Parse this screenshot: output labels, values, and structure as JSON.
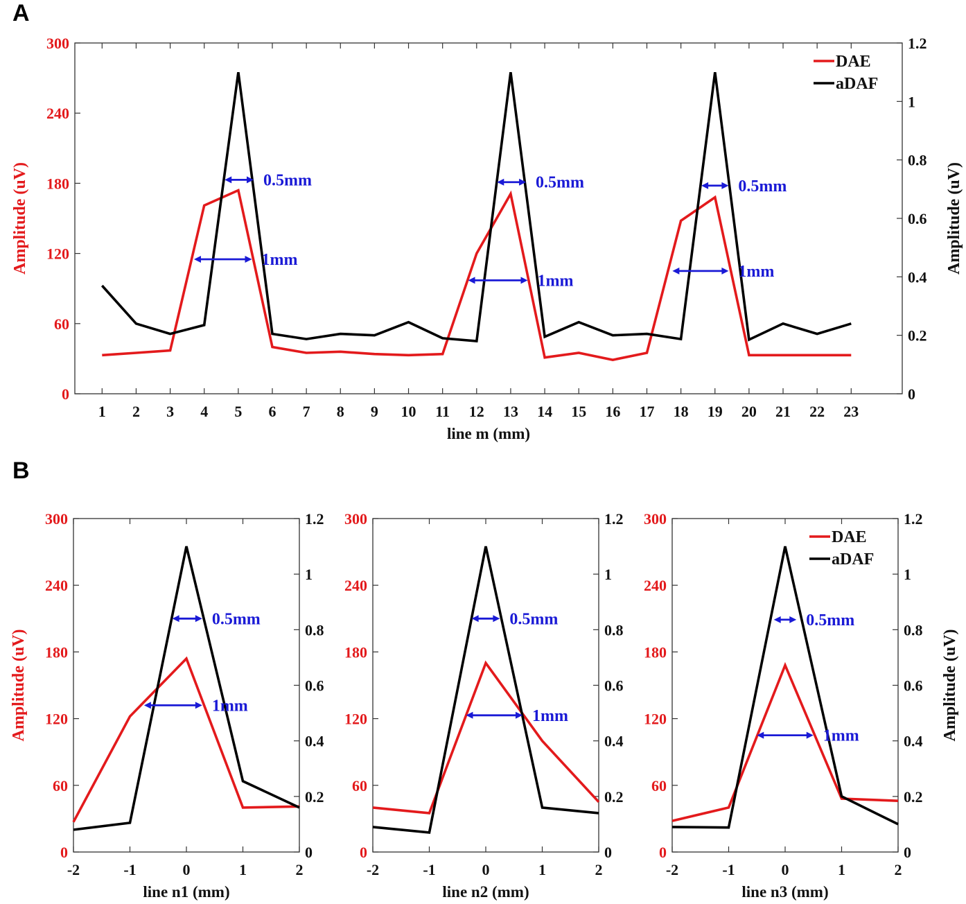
{
  "panel_labels": [
    "A",
    "B"
  ],
  "colors": {
    "dae": "#e31a1c",
    "adaf": "#000000",
    "annotation": "#1a1ad6"
  },
  "chart_data": [
    {
      "id": "A",
      "type": "line",
      "xlabel": "line m (mm)",
      "ylabel_left": "Amplitude (uV)",
      "ylabel_right": "Amplitude (uV)",
      "x": [
        1,
        2,
        3,
        4,
        5,
        6,
        7,
        8,
        9,
        10,
        11,
        12,
        13,
        14,
        15,
        16,
        17,
        18,
        19,
        20,
        21,
        22,
        23
      ],
      "xticks": [
        "1",
        "2",
        "3",
        "4",
        "5",
        "6",
        "7",
        "8",
        "9",
        "10",
        "11",
        "12",
        "13",
        "14",
        "15",
        "16",
        "17",
        "18",
        "19",
        "20",
        "21",
        "22",
        "23"
      ],
      "xlim": [
        0.2,
        24.5
      ],
      "ylim_left": [
        0,
        300
      ],
      "yticks_left": [
        "0",
        "60",
        "120",
        "180",
        "240",
        "300"
      ],
      "ylim_right": [
        0,
        1.2
      ],
      "yticks_right": [
        "0",
        "0.2",
        "0.4",
        "0.6",
        "0.8",
        "1",
        "1.2"
      ],
      "legend": {
        "placement": "top-right",
        "entries": [
          "DAE",
          "aDAF"
        ]
      },
      "series": [
        {
          "name": "DAE",
          "axis": "left",
          "values": [
            33,
            35,
            37,
            161,
            174,
            40,
            35,
            36,
            34,
            33,
            34,
            120,
            171,
            31,
            35,
            29,
            35,
            148,
            168,
            33,
            33,
            33,
            33
          ]
        },
        {
          "name": "aDAF",
          "axis": "right",
          "values": [
            0.37,
            0.24,
            0.205,
            0.235,
            1.1,
            0.205,
            0.187,
            0.205,
            0.2,
            0.245,
            0.19,
            0.18,
            1.1,
            0.195,
            0.245,
            0.2,
            0.205,
            0.187,
            1.1,
            0.185,
            0.24,
            0.205,
            0.24
          ]
        }
      ],
      "annotations": [
        {
          "text": "0.5mm",
          "x1": 4.6,
          "x2": 5.45,
          "y": 183
        },
        {
          "text": "1mm",
          "x1": 3.7,
          "x2": 5.4,
          "y": 115
        },
        {
          "text": "0.5mm",
          "x1": 12.6,
          "x2": 13.45,
          "y": 181
        },
        {
          "text": "1mm",
          "x1": 11.75,
          "x2": 13.5,
          "y": 97
        },
        {
          "text": "0.5mm",
          "x1": 18.6,
          "x2": 19.4,
          "y": 178
        },
        {
          "text": "1mm",
          "x1": 17.75,
          "x2": 19.4,
          "y": 105
        }
      ]
    },
    {
      "id": "B1",
      "type": "line",
      "xlabel": "line n1 (mm)",
      "ylabel_left": "Amplitude (uV)",
      "ylabel_right": "",
      "x": [
        -2,
        -1,
        0,
        1,
        2
      ],
      "xticks": [
        "-2",
        "-1",
        "0",
        "1",
        "2"
      ],
      "xlim": [
        -2,
        2
      ],
      "ylim_left": [
        0,
        300
      ],
      "yticks_left": [
        "0",
        "60",
        "120",
        "180",
        "240",
        "300"
      ],
      "ylim_right": [
        0,
        1.2
      ],
      "yticks_right": [
        "0",
        "0.2",
        "0.4",
        "0.6",
        "0.8",
        "1",
        "1.2"
      ],
      "legend": null,
      "series": [
        {
          "name": "DAE",
          "axis": "left",
          "values": [
            27,
            122,
            174,
            40,
            41
          ]
        },
        {
          "name": "aDAF",
          "axis": "right",
          "values": [
            0.08,
            0.105,
            1.1,
            0.255,
            0.16
          ]
        }
      ],
      "annotations": [
        {
          "text": "0.5mm",
          "x1": -0.25,
          "x2": 0.28,
          "y": 210
        },
        {
          "text": "1mm",
          "x1": -0.75,
          "x2": 0.28,
          "y": 132
        }
      ]
    },
    {
      "id": "B2",
      "type": "line",
      "xlabel": "line n2 (mm)",
      "ylabel_left": "",
      "ylabel_right": "",
      "x": [
        -2,
        -1,
        0,
        1,
        2
      ],
      "xticks": [
        "-2",
        "-1",
        "0",
        "1",
        "2"
      ],
      "xlim": [
        -2,
        2
      ],
      "ylim_left": [
        0,
        300
      ],
      "yticks_left": [
        "0",
        "60",
        "120",
        "180",
        "240",
        "300"
      ],
      "ylim_right": [
        0,
        1.2
      ],
      "yticks_right": [
        "0",
        "0.2",
        "0.4",
        "0.6",
        "0.8",
        "1",
        "1.2"
      ],
      "legend": null,
      "series": [
        {
          "name": "DAE",
          "axis": "left",
          "values": [
            40,
            35,
            170,
            100,
            45
          ]
        },
        {
          "name": "aDAF",
          "axis": "right",
          "values": [
            0.09,
            0.07,
            1.1,
            0.16,
            0.14
          ]
        }
      ],
      "annotations": [
        {
          "text": "0.5mm",
          "x1": -0.25,
          "x2": 0.25,
          "y": 210
        },
        {
          "text": "1mm",
          "x1": -0.35,
          "x2": 0.65,
          "y": 123
        }
      ]
    },
    {
      "id": "B3",
      "type": "line",
      "xlabel": "line n3 (mm)",
      "ylabel_left": "",
      "ylabel_right": "Amplitude (uV)",
      "x": [
        -2,
        -1,
        0,
        1,
        2
      ],
      "xticks": [
        "-2",
        "-1",
        "0",
        "1",
        "2"
      ],
      "xlim": [
        -2,
        2
      ],
      "ylim_left": [
        0,
        300
      ],
      "yticks_left": [
        "0",
        "60",
        "120",
        "180",
        "240",
        "300"
      ],
      "ylim_right": [
        0,
        1.2
      ],
      "yticks_right": [
        "0",
        "0.2",
        "0.4",
        "0.6",
        "0.8",
        "1",
        "1.2"
      ],
      "legend": {
        "placement": "top-right",
        "entries": [
          "DAE",
          "aDAF"
        ]
      },
      "series": [
        {
          "name": "DAE",
          "axis": "left",
          "values": [
            28,
            40,
            168,
            48,
            46
          ]
        },
        {
          "name": "aDAF",
          "axis": "right",
          "values": [
            0.09,
            0.088,
            1.1,
            0.2,
            0.1
          ]
        }
      ],
      "annotations": [
        {
          "text": "0.5mm",
          "x1": -0.2,
          "x2": 0.2,
          "y": 209
        },
        {
          "text": "1mm",
          "x1": -0.5,
          "x2": 0.5,
          "y": 105
        }
      ]
    }
  ]
}
